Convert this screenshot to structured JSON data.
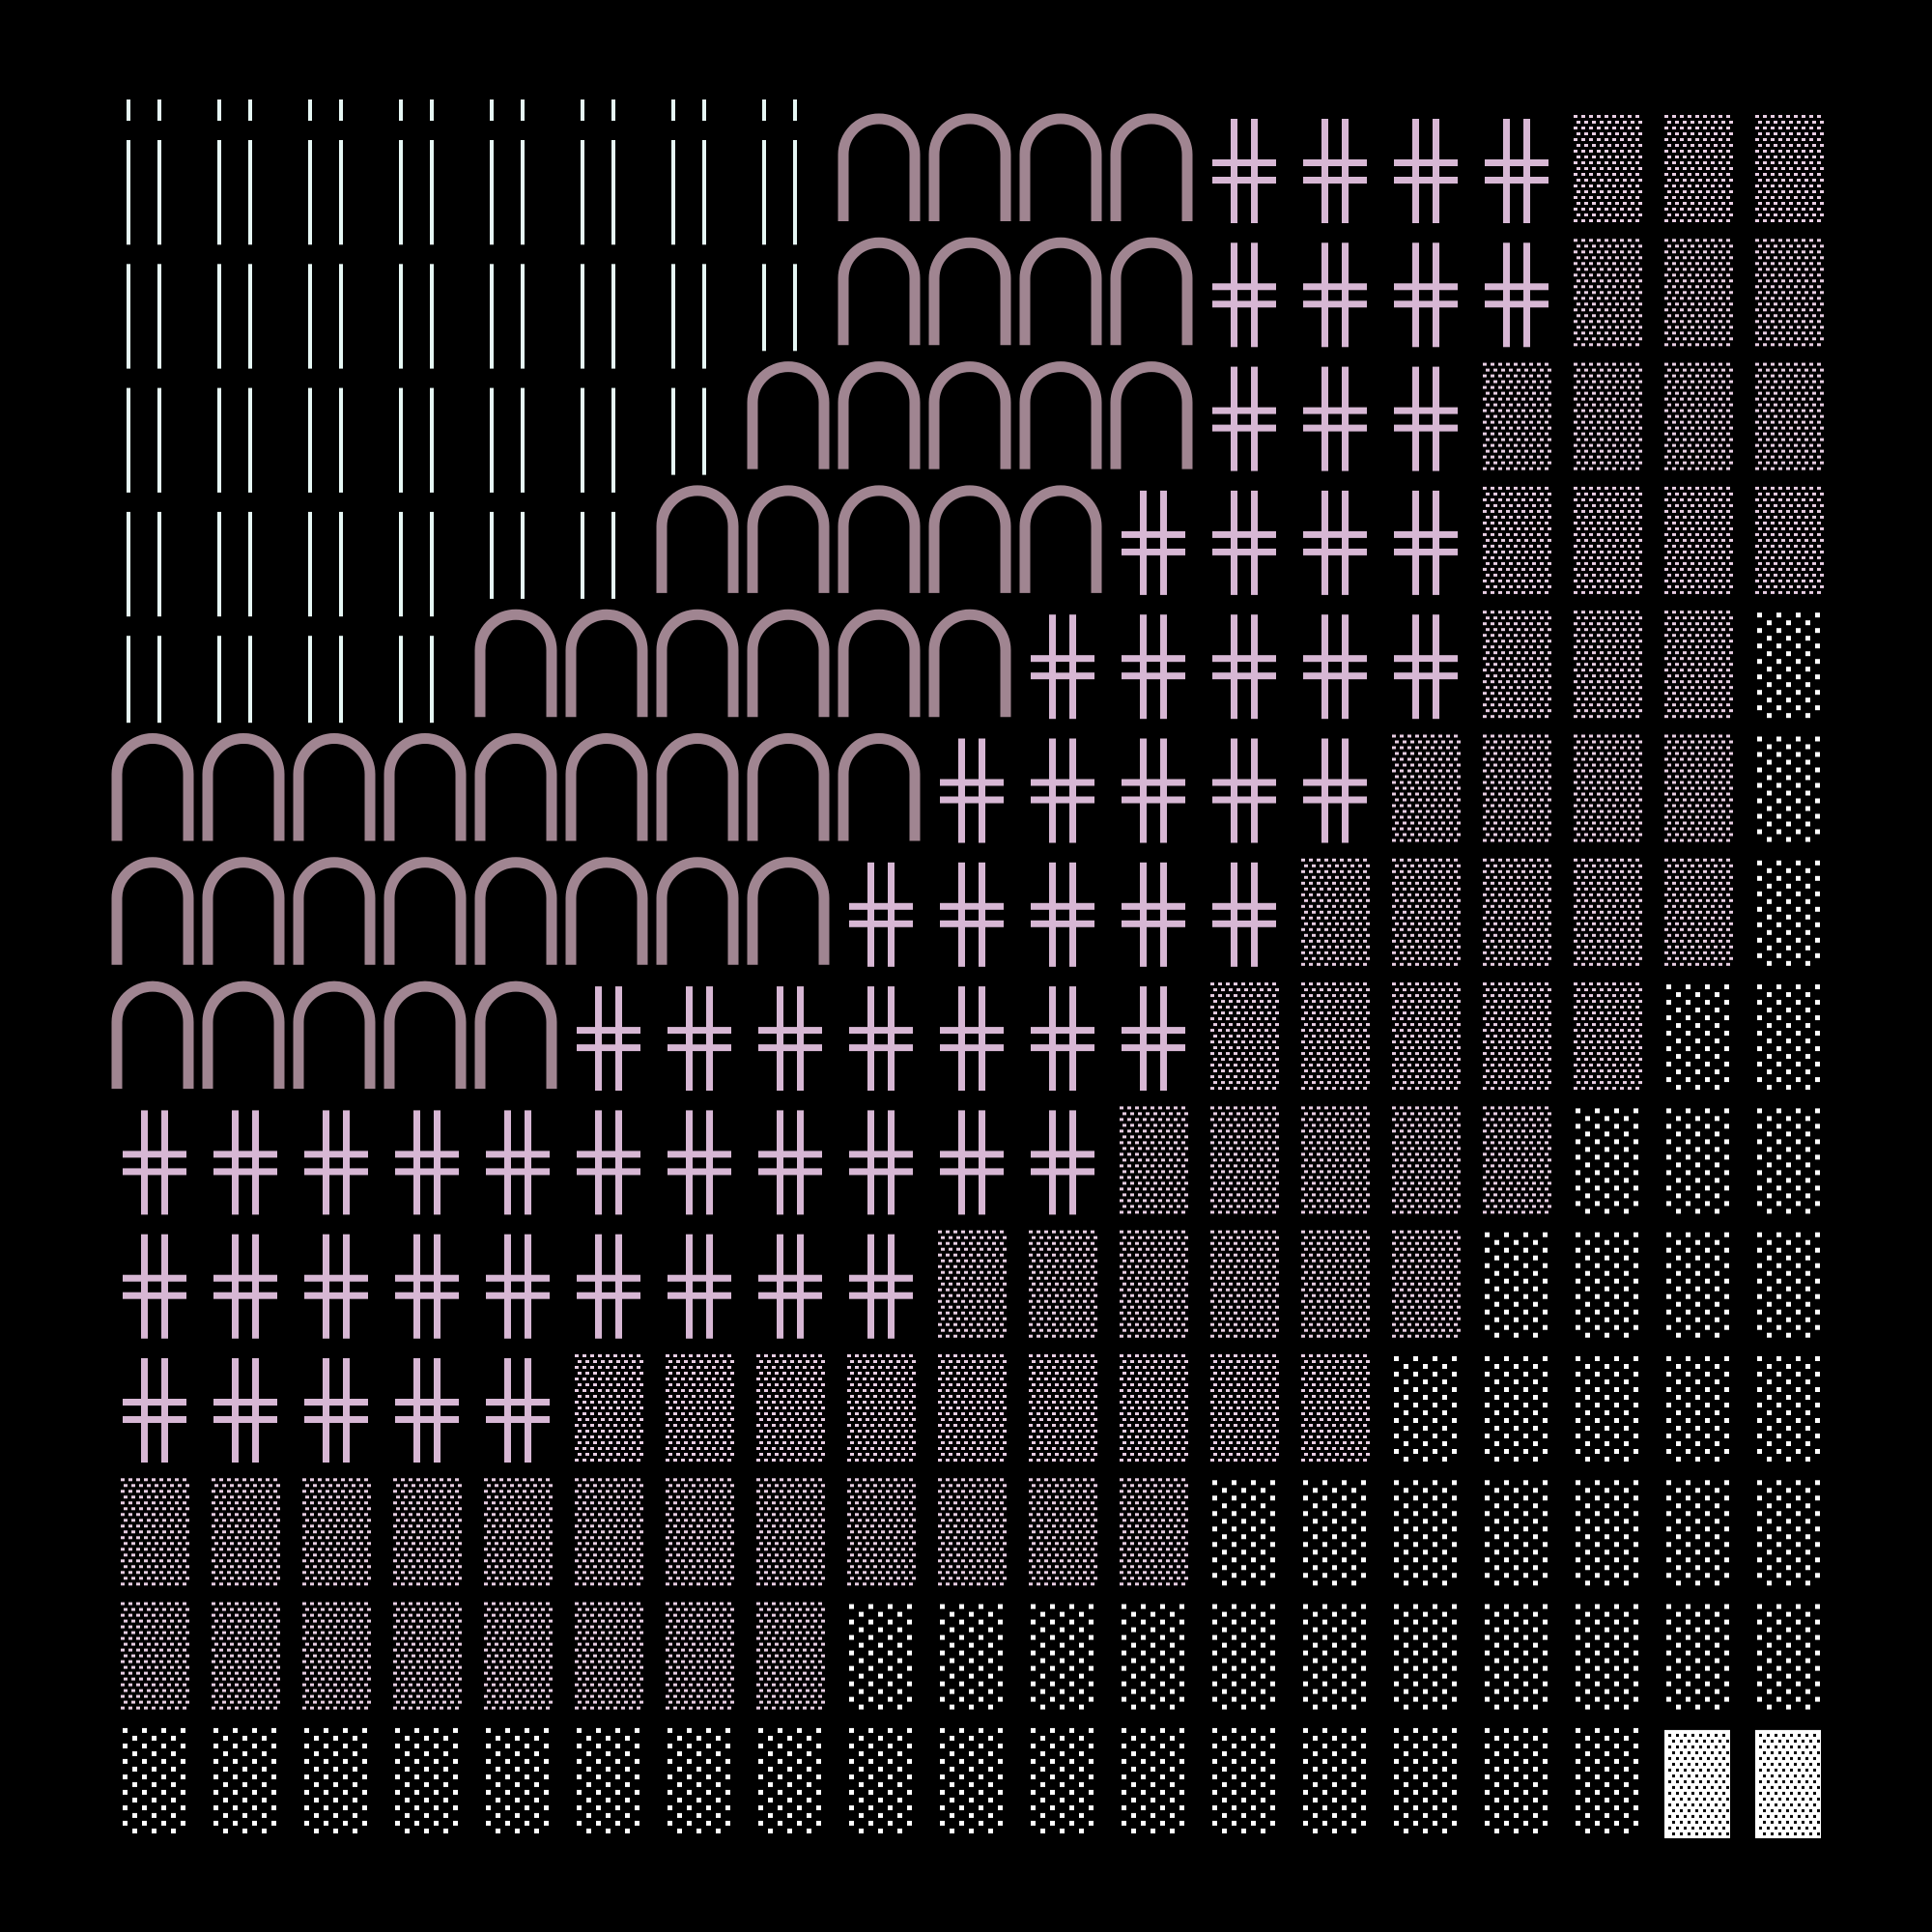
{
  "artwork": {
    "background": "#000000",
    "grid": {
      "rows": 14,
      "cols": 19
    },
    "palette": {
      "lines": "#e6f7f4",
      "arches": "#a08591",
      "crosses": "#d7b7d4",
      "dots_dense": "#e7cde2",
      "dots_sparse": "#ffffff",
      "dots_solid": "#ffffff"
    },
    "tile_kinds": [
      "lines",
      "arches",
      "crosses",
      "dots_dense",
      "dots_sparse",
      "dots_solid"
    ],
    "row_runs": [
      [
        [
          "lines",
          8
        ],
        [
          "arches",
          4
        ],
        [
          "crosses",
          4
        ],
        [
          "dots_dense",
          3
        ]
      ],
      [
        [
          "lines",
          8
        ],
        [
          "arches",
          4
        ],
        [
          "crosses",
          4
        ],
        [
          "dots_dense",
          3
        ]
      ],
      [
        [
          "lines",
          7
        ],
        [
          "arches",
          5
        ],
        [
          "crosses",
          3
        ],
        [
          "dots_dense",
          4
        ]
      ],
      [
        [
          "lines",
          6
        ],
        [
          "arches",
          5
        ],
        [
          "crosses",
          4
        ],
        [
          "dots_dense",
          4
        ]
      ],
      [
        [
          "lines",
          4
        ],
        [
          "arches",
          6
        ],
        [
          "crosses",
          5
        ],
        [
          "dots_dense",
          3
        ],
        [
          "dots_sparse",
          1
        ]
      ],
      [
        [
          "arches",
          9
        ],
        [
          "crosses",
          5
        ],
        [
          "dots_dense",
          4
        ],
        [
          "dots_sparse",
          1
        ]
      ],
      [
        [
          "arches",
          8
        ],
        [
          "crosses",
          5
        ],
        [
          "dots_dense",
          5
        ],
        [
          "dots_sparse",
          1
        ]
      ],
      [
        [
          "arches",
          5
        ],
        [
          "crosses",
          7
        ],
        [
          "dots_dense",
          5
        ],
        [
          "dots_sparse",
          2
        ]
      ],
      [
        [
          "crosses",
          11
        ],
        [
          "dots_dense",
          5
        ],
        [
          "dots_sparse",
          3
        ]
      ],
      [
        [
          "crosses",
          9
        ],
        [
          "dots_dense",
          6
        ],
        [
          "dots_sparse",
          4
        ]
      ],
      [
        [
          "crosses",
          5
        ],
        [
          "dots_dense",
          9
        ],
        [
          "dots_sparse",
          5
        ]
      ],
      [
        [
          "dots_dense",
          12
        ],
        [
          "dots_sparse",
          7
        ]
      ],
      [
        [
          "dots_dense",
          8
        ],
        [
          "dots_sparse",
          11
        ]
      ],
      [
        [
          "dots_sparse",
          17
        ],
        [
          "dots_solid",
          2
        ]
      ]
    ]
  }
}
